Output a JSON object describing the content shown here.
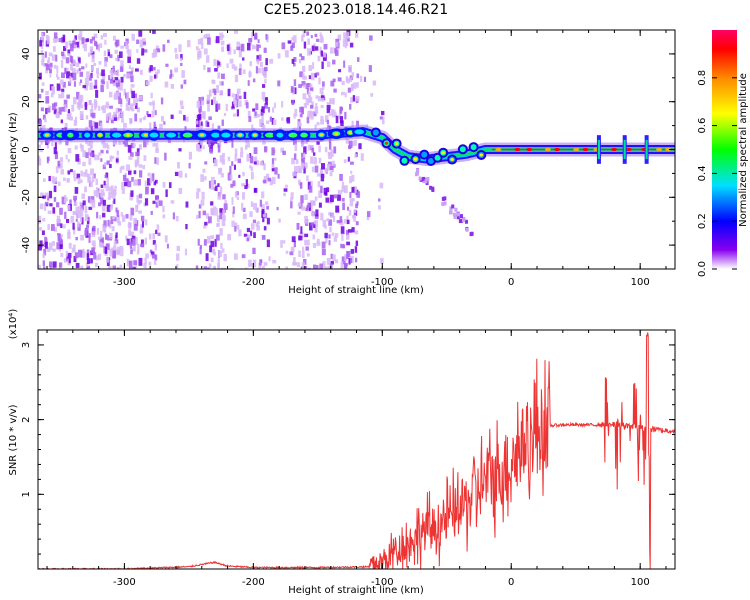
{
  "title": "C2E5.2023.018.14.46.R21",
  "chart_data": [
    {
      "type": "heatmap",
      "xlabel": "Height of straight line (km)",
      "ylabel": "Frequency (Hz)",
      "xlim": [
        -367,
        127
      ],
      "ylim": [
        -50,
        50
      ],
      "xticks": [
        -300,
        -200,
        -100,
        0,
        100
      ],
      "yticks": [
        -40,
        -20,
        0,
        20,
        40
      ],
      "colorbar": {
        "label": "Normalized spectral amplitude",
        "range": [
          0.0,
          1.0
        ],
        "ticks": [
          "0.0",
          "0.2",
          "0.4",
          "0.6",
          "0.8"
        ],
        "colors": [
          "#ffffff",
          "#8800ee",
          "#0000ff",
          "#00e0ff",
          "#00ff00",
          "#ffff00",
          "#ff8800",
          "#ff0000",
          "#ff0066"
        ]
      },
      "ridge": [
        {
          "x": -367,
          "y": 6
        },
        {
          "x": -300,
          "y": 6
        },
        {
          "x": -200,
          "y": 6
        },
        {
          "x": -150,
          "y": 6
        },
        {
          "x": -115,
          "y": 7.5
        },
        {
          "x": -100,
          "y": 5
        },
        {
          "x": -90,
          "y": 0
        },
        {
          "x": -80,
          "y": -3
        },
        {
          "x": -65,
          "y": -4
        },
        {
          "x": -50,
          "y": -3
        },
        {
          "x": -35,
          "y": -2
        },
        {
          "x": -20,
          "y": 0
        },
        {
          "x": 0,
          "y": 0
        },
        {
          "x": 50,
          "y": 0
        },
        {
          "x": 127,
          "y": 0
        }
      ]
    },
    {
      "type": "line",
      "xlabel": "Height of straight line (km)",
      "ylabel": "SNR (10 * v/v)",
      "yscale_note": "(x10⁴)",
      "xlim": [
        -367,
        127
      ],
      "ylim": [
        0,
        3.2
      ],
      "xticks": [
        -300,
        -200,
        -100,
        0,
        100
      ],
      "yticks": [
        1,
        2,
        3
      ],
      "color": "#ee3333",
      "series": [
        {
          "x": [
            -367,
            -300,
            -250,
            -230,
            -220,
            -200,
            -150,
            -110,
            -100,
            -90,
            -80,
            -70,
            -60,
            -50,
            -40,
            -30,
            -20,
            -10,
            0,
            10,
            20,
            30,
            40,
            50,
            60,
            70,
            80,
            90,
            100,
            105,
            110,
            115,
            127
          ],
          "y": [
            0.0,
            0.0,
            0.03,
            0.09,
            0.04,
            0.02,
            0.02,
            0.03,
            0.08,
            0.25,
            0.35,
            0.5,
            0.55,
            0.65,
            0.8,
            1.0,
            1.15,
            1.3,
            1.45,
            1.7,
            1.85,
            1.92,
            1.93,
            1.93,
            1.93,
            1.93,
            1.93,
            1.92,
            1.9,
            1.88,
            1.87,
            1.86,
            1.85
          ]
        }
      ]
    }
  ]
}
